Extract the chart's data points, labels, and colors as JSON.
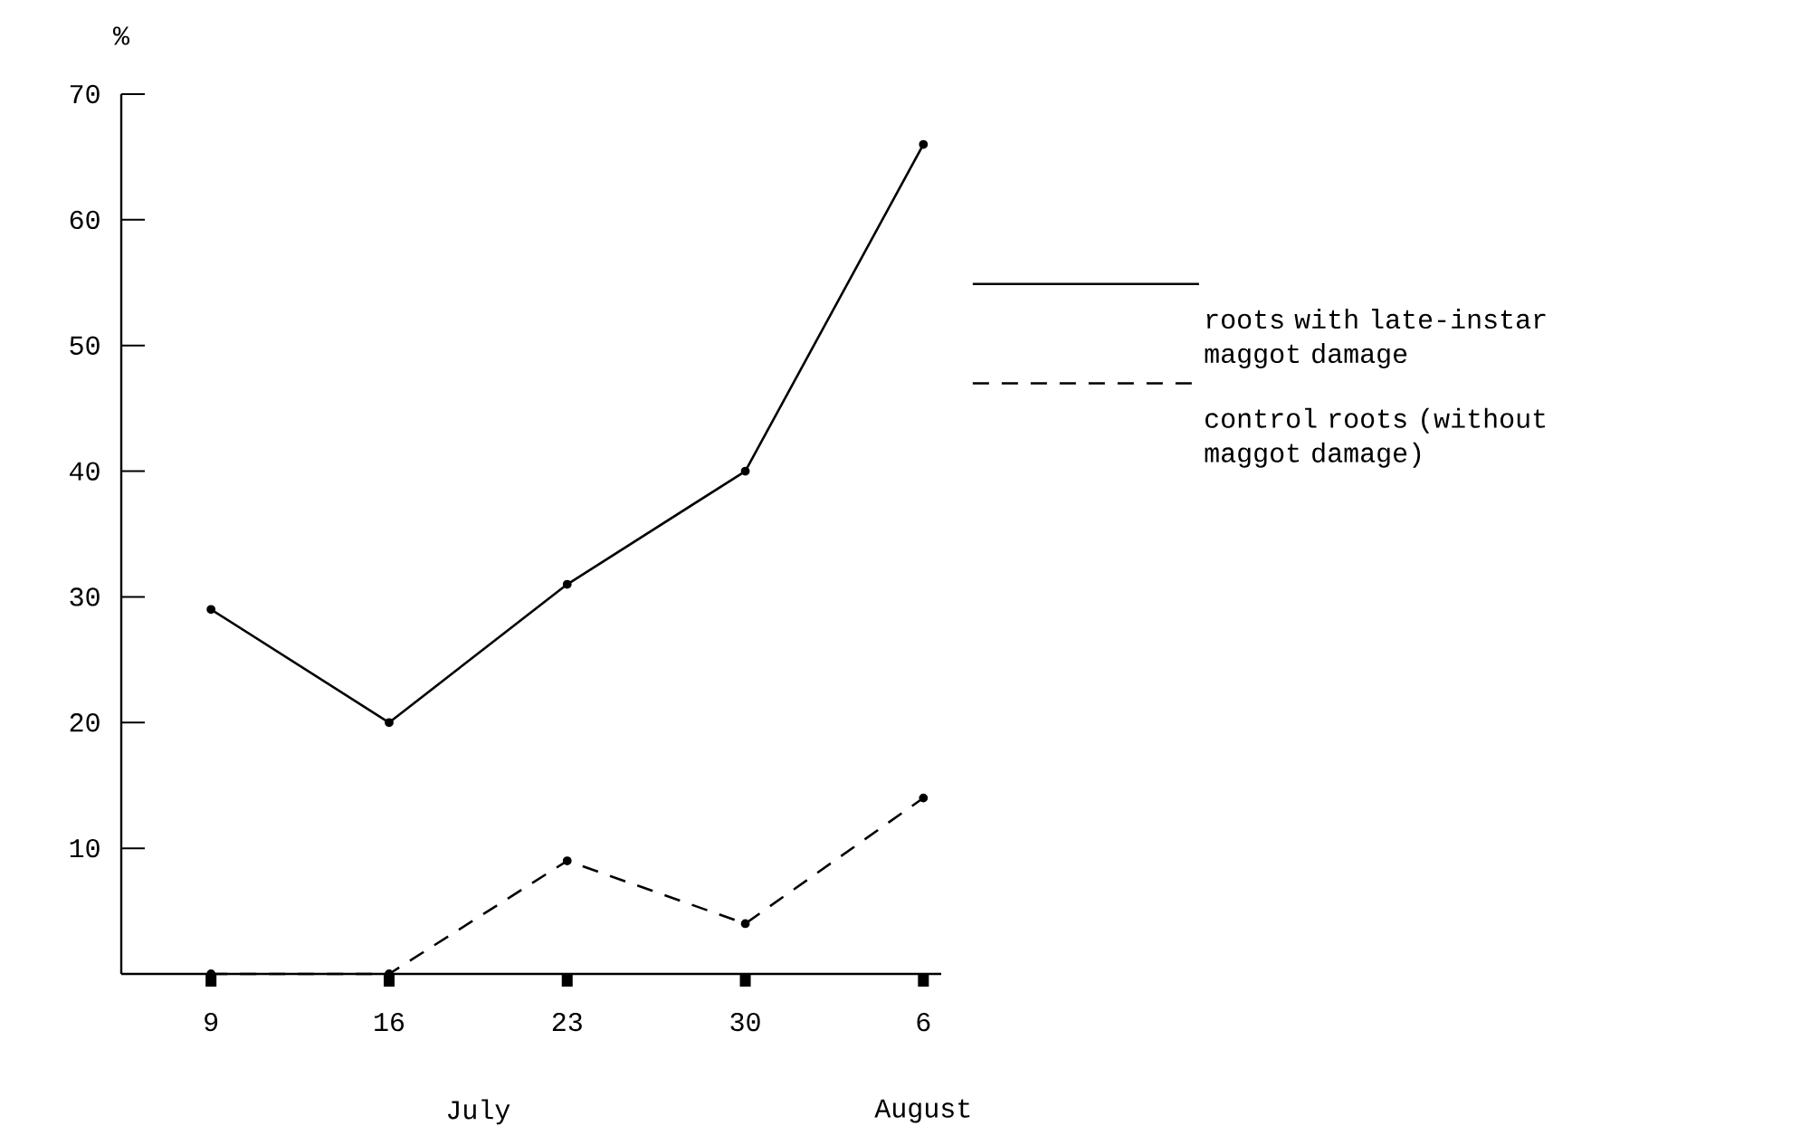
{
  "chart_data": {
    "type": "line",
    "ylabel": "%",
    "categories": [
      "9",
      "16",
      "23",
      "30",
      "6"
    ],
    "series": [
      {
        "name": "roots with late-instar maggot damage",
        "color": "#000000",
        "values": [
          29,
          20,
          31,
          40,
          66
        ],
        "line_style": "solid"
      },
      {
        "name": "control roots (without maggot damage)",
        "color": "#000000",
        "values": [
          0,
          0,
          9,
          4,
          14
        ],
        "line_style": "dashed"
      }
    ],
    "ylim": [
      0,
      70
    ],
    "yticks": [
      10,
      20,
      30,
      40,
      50,
      60,
      70
    ],
    "annotations": [
      "July",
      "August"
    ],
    "marker": "circle",
    "legend": "right"
  }
}
